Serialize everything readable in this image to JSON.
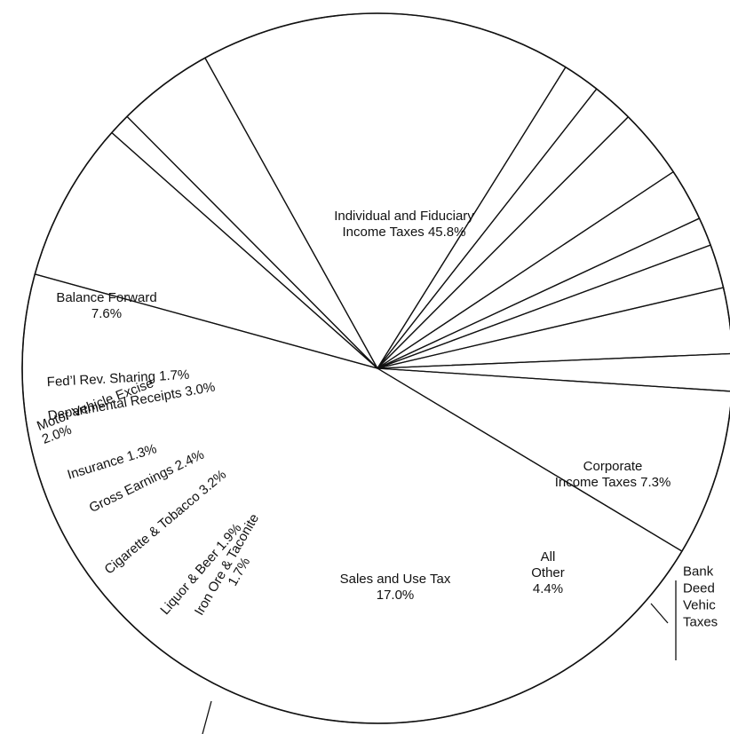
{
  "chart_data": {
    "type": "pie",
    "title": "",
    "slices": [
      {
        "label": "Individual and Fiduciary Income Taxes",
        "value": 45.8,
        "display": [
          "Individual and Fiduciary",
          "Income Taxes  45.8%"
        ]
      },
      {
        "label": "Corporate Income Taxes",
        "value": 7.3,
        "display": [
          "Corporate",
          "Income Taxes  7.3%"
        ]
      },
      {
        "label": "Bank Excise, Deed Tax, Motor Vehicle Registration Taxes",
        "value": 1.0,
        "display": [
          "Bank",
          "Deed",
          "Vehic",
          "Taxes"
        ]
      },
      {
        "label": "All Other",
        "value": 4.4,
        "display": [
          "All",
          "Other",
          "4.4%"
        ]
      },
      {
        "label": "Sales and Use Tax",
        "value": 17.0,
        "display": [
          "Sales and Use Tax",
          "17.0%"
        ]
      },
      {
        "label": "Iron Ore & Taconite",
        "value": 1.7,
        "display": [
          "Iron Ore & Taconite",
          "1.7%"
        ]
      },
      {
        "label": "Liquor & Beer",
        "value": 1.9,
        "display": [
          "Liquor & Beer   1.9%"
        ]
      },
      {
        "label": "Cigarette & Tobacco",
        "value": 3.2,
        "display": [
          "Cigarette & Tobacco  3.2%"
        ]
      },
      {
        "label": "Gross Earnings",
        "value": 2.4,
        "display": [
          "Gross Earnings  2.4%"
        ]
      },
      {
        "label": "Insurance",
        "value": 1.3,
        "display": [
          "Insurance  1.3%"
        ]
      },
      {
        "label": "Motor Vehicle Excise",
        "value": 2.0,
        "display": [
          "Motor Vehicle Excise",
          "2.0%"
        ]
      },
      {
        "label": "Departmental Receipts",
        "value": 3.0,
        "display": [
          "Departmental Receipts  3.0%"
        ]
      },
      {
        "label": "Fed'l Rev. Sharing",
        "value": 1.7,
        "display": [
          "Fed’l Rev. Sharing  1.7%"
        ]
      },
      {
        "label": "Balance Forward",
        "value": 7.6,
        "display": [
          "Balance Forward",
          "7.6%"
        ]
      }
    ]
  }
}
